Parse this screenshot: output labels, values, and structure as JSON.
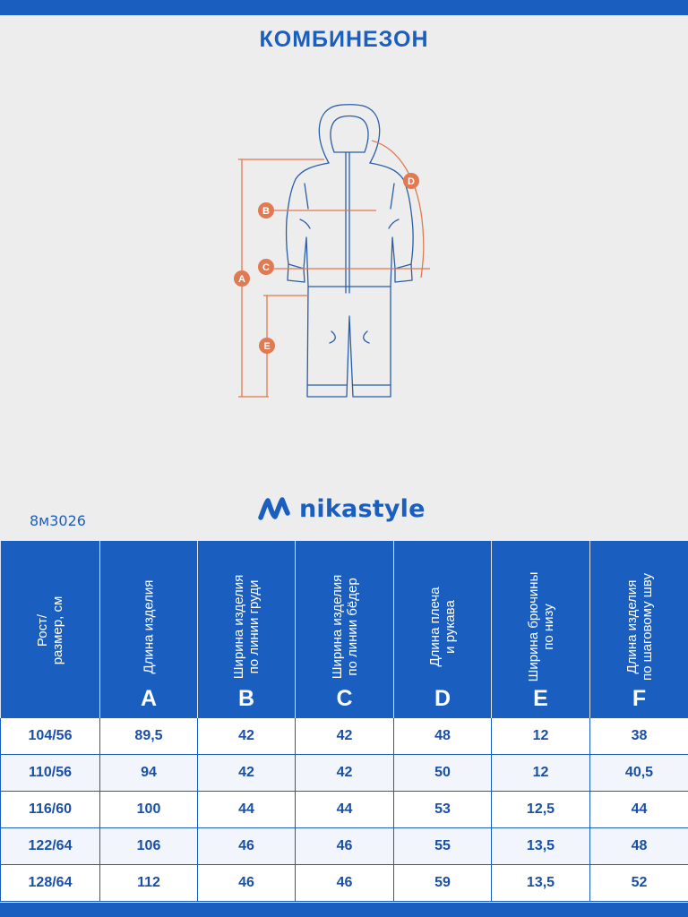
{
  "title": "КОМБИНЕЗОН",
  "sketch": {
    "labels": [
      "A",
      "B",
      "C",
      "D",
      "E"
    ],
    "colors": {
      "outline": "#2a5ea6",
      "measure": "#e07a53"
    }
  },
  "brand": {
    "name": "nikastyle",
    "icon": "nikastyle-logo-icon",
    "color": "#1a5fc0"
  },
  "article": "8м3026",
  "table": {
    "columns": [
      {
        "label": "Рост/\nразмер, см",
        "letter": ""
      },
      {
        "label": "Длина изделия",
        "letter": "A"
      },
      {
        "label": "Ширина изделия\nпо линии груди",
        "letter": "B"
      },
      {
        "label": "Ширина изделия\nпо линии бёдер",
        "letter": "C"
      },
      {
        "label": "Длина плеча\nи рукава",
        "letter": "D"
      },
      {
        "label": "Ширина брючины\nпо низу",
        "letter": "E"
      },
      {
        "label": "Длина изделия\nпо шаговому шву",
        "letter": "F"
      }
    ],
    "rows": [
      [
        "104/56",
        "89,5",
        "42",
        "42",
        "48",
        "12",
        "38"
      ],
      [
        "110/56",
        "94",
        "42",
        "42",
        "50",
        "12",
        "40,5"
      ],
      [
        "116/60",
        "100",
        "44",
        "44",
        "53",
        "12,5",
        "44"
      ],
      [
        "122/64",
        "106",
        "46",
        "46",
        "55",
        "13,5",
        "48"
      ],
      [
        "128/64",
        "112",
        "46",
        "46",
        "59",
        "13,5",
        "52"
      ]
    ]
  },
  "colors": {
    "accent": "#1a5fc0",
    "background": "#ededed",
    "measure": "#e07a53"
  }
}
